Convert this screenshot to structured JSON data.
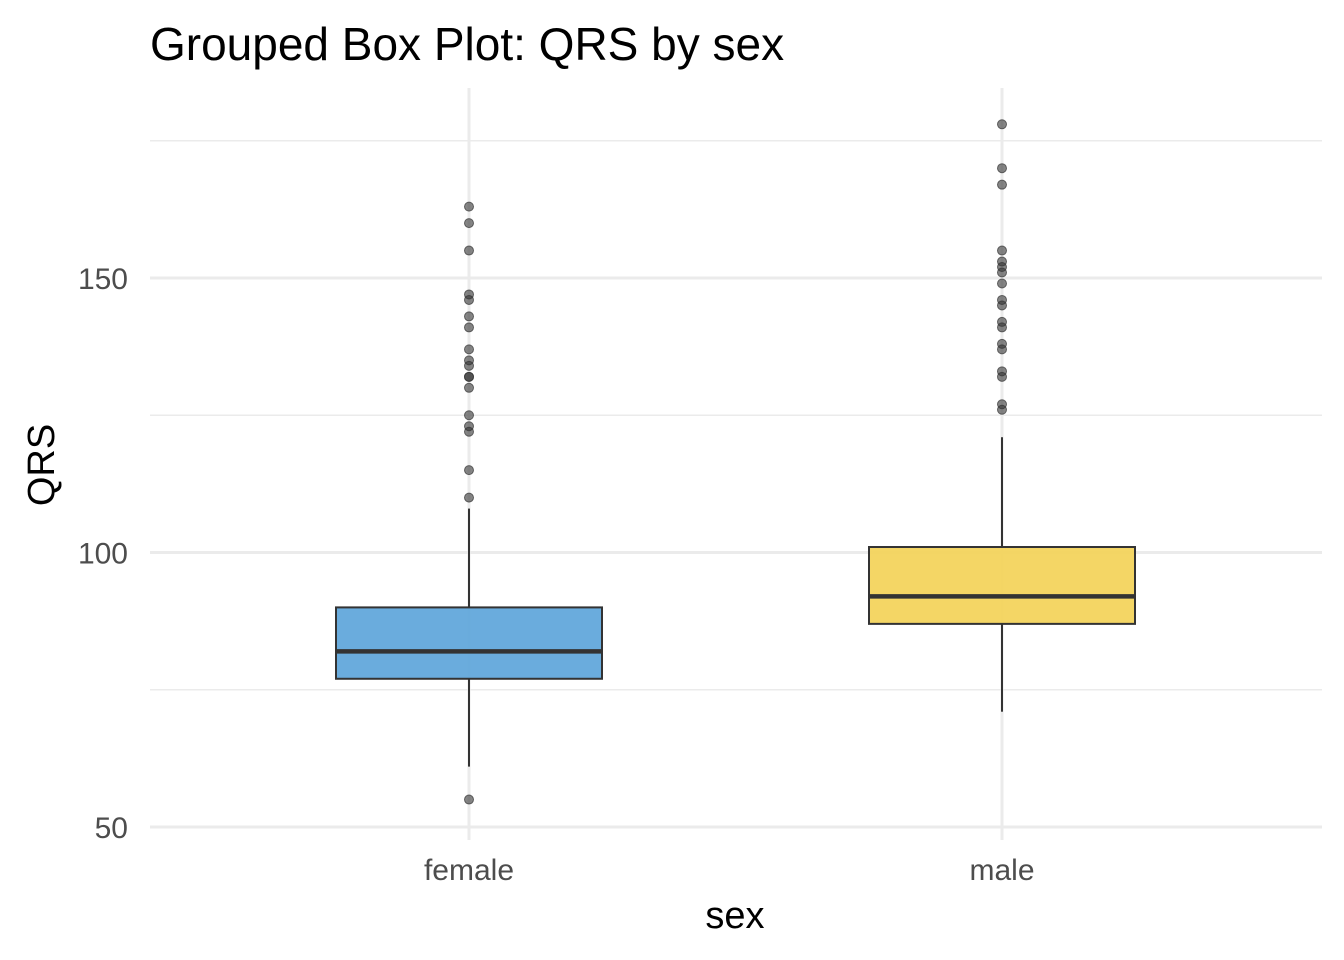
{
  "chart_data": {
    "type": "box",
    "title": "Grouped Box Plot: QRS by sex",
    "xlabel": "sex",
    "ylabel": "QRS",
    "ylim": [
      48,
      179
    ],
    "yticks": [
      50,
      100,
      150
    ],
    "grid": true,
    "legend": "none",
    "categories": [
      "female",
      "male"
    ],
    "groups": [
      {
        "category": "female",
        "color": "#5DA5DA",
        "whisker_low": 61,
        "q1": 77,
        "median": 82,
        "q3": 90,
        "whisker_high": 108,
        "outliers": [
          163,
          160,
          155,
          147,
          146,
          143,
          141,
          137,
          135,
          134,
          132,
          132,
          130,
          125,
          123,
          122,
          115,
          110,
          55
        ]
      },
      {
        "category": "male",
        "color": "#F3D358",
        "whisker_low": 71,
        "q1": 87,
        "median": 92,
        "q3": 101,
        "whisker_high": 121,
        "outliers": [
          178,
          170,
          167,
          155,
          153,
          152,
          151,
          149,
          146,
          145,
          142,
          141,
          138,
          137,
          133,
          132,
          127,
          126
        ]
      }
    ]
  }
}
